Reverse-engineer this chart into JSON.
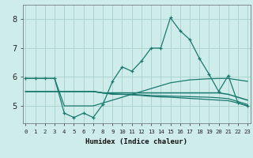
{
  "xlabel": "Humidex (Indice chaleur)",
  "background_color": "#ceecea",
  "grid_color": "#aed4d0",
  "line_color": "#1a7a6e",
  "x_values": [
    0,
    1,
    2,
    3,
    4,
    5,
    6,
    7,
    8,
    9,
    10,
    11,
    12,
    13,
    14,
    15,
    16,
    17,
    18,
    19,
    20,
    21,
    22,
    23
  ],
  "series1": [
    5.95,
    5.95,
    5.95,
    5.95,
    4.75,
    4.6,
    4.75,
    4.6,
    5.05,
    5.85,
    6.35,
    6.2,
    6.55,
    7.0,
    7.0,
    8.05,
    7.6,
    7.3,
    6.65,
    6.1,
    5.5,
    6.05,
    5.1,
    5.0
  ],
  "series2": [
    5.5,
    5.5,
    5.5,
    5.5,
    5.5,
    5.5,
    5.5,
    5.5,
    5.45,
    5.45,
    5.45,
    5.45,
    5.45,
    5.45,
    5.45,
    5.45,
    5.45,
    5.45,
    5.45,
    5.45,
    5.45,
    5.4,
    5.3,
    5.2
  ],
  "series3": [
    5.5,
    5.5,
    5.5,
    5.5,
    5.5,
    5.5,
    5.5,
    5.5,
    5.45,
    5.4,
    5.4,
    5.4,
    5.38,
    5.36,
    5.35,
    5.34,
    5.33,
    5.32,
    5.31,
    5.3,
    5.28,
    5.25,
    5.15,
    5.05
  ],
  "series4": [
    5.5,
    5.5,
    5.5,
    5.5,
    5.5,
    5.5,
    5.5,
    5.5,
    5.45,
    5.42,
    5.4,
    5.38,
    5.36,
    5.33,
    5.31,
    5.3,
    5.28,
    5.26,
    5.24,
    5.22,
    5.2,
    5.18,
    5.1,
    5.0
  ],
  "series_diag": [
    5.95,
    5.95,
    5.95,
    5.95,
    5.0,
    5.0,
    5.0,
    5.0,
    5.1,
    5.2,
    5.3,
    5.4,
    5.5,
    5.6,
    5.7,
    5.8,
    5.85,
    5.9,
    5.92,
    5.94,
    5.95,
    5.95,
    5.9,
    5.85
  ],
  "ylim": [
    4.4,
    8.5
  ],
  "yticks": [
    5,
    6,
    7,
    8
  ],
  "xticks": [
    0,
    1,
    2,
    3,
    4,
    5,
    6,
    7,
    8,
    9,
    10,
    11,
    12,
    13,
    14,
    15,
    16,
    17,
    18,
    19,
    20,
    21,
    22,
    23
  ]
}
